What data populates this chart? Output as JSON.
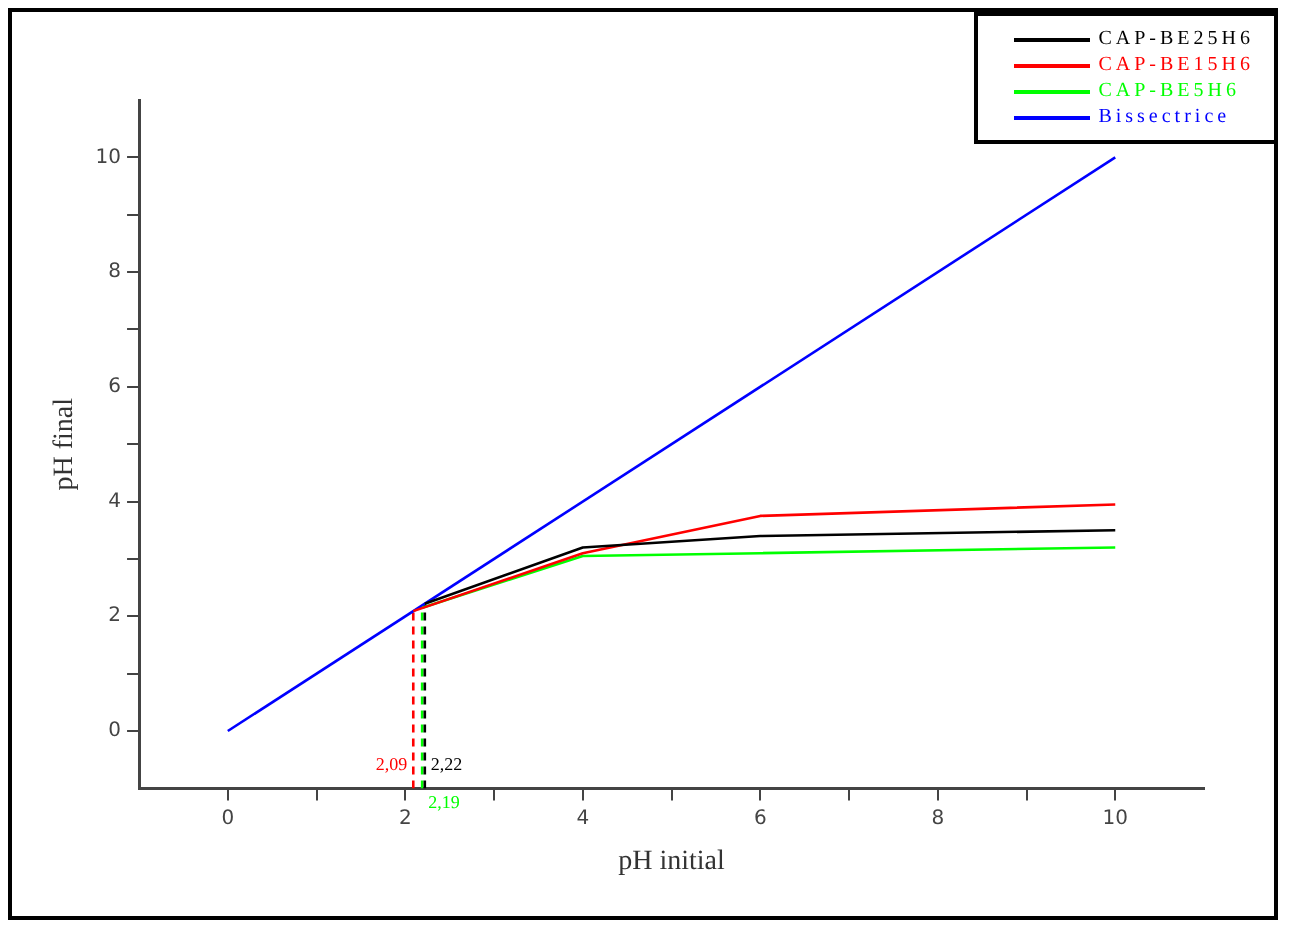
{
  "chart_data": {
    "type": "line",
    "xlabel": "pH initial",
    "ylabel": "pH final",
    "xlim": [
      -1,
      11
    ],
    "ylim": [
      -1,
      11
    ],
    "xticks": [
      0,
      {
        "value": 1,
        "label": null
      },
      2,
      {
        "value": 3,
        "label": null
      },
      4,
      {
        "value": 5,
        "label": null
      },
      6,
      {
        "value": 7,
        "label": null
      },
      8,
      {
        "value": 9,
        "label": null
      },
      10
    ],
    "yticks": [
      0,
      {
        "value": 1,
        "label": null
      },
      2,
      {
        "value": 3,
        "label": null
      },
      4,
      {
        "value": 5,
        "label": null
      },
      6,
      {
        "value": 7,
        "label": null
      },
      8,
      {
        "value": 9,
        "label": null
      },
      10
    ],
    "grid": false,
    "legend": "top right",
    "marker": "none",
    "line_style": "solid",
    "series": [
      {
        "name": "CAP-BE25H6",
        "color": "#000000",
        "x": [
          2.22,
          4,
          6,
          10
        ],
        "values": [
          2.22,
          3.2,
          3.4,
          3.5
        ]
      },
      {
        "name": "CAP-BE15H6",
        "color": "#ff0000",
        "x": [
          2.09,
          4,
          6,
          10
        ],
        "values": [
          2.09,
          3.1,
          3.75,
          3.95
        ]
      },
      {
        "name": "CAP-BE5H6",
        "color": "#00ff00",
        "x": [
          2.19,
          4,
          6,
          10
        ],
        "values": [
          2.15,
          3.05,
          3.1,
          3.2
        ]
      },
      {
        "name": "Bissectrice",
        "color": "#0000ff",
        "x": [
          0,
          10
        ],
        "values": [
          0,
          10
        ]
      },
      {
        "color": "#ff0000",
        "line_style": "dashed",
        "x": [
          2.09,
          2.09
        ],
        "values": [
          -1,
          2.09
        ]
      },
      {
        "color": "#000000",
        "line_style": "dashed",
        "x": [
          2.22,
          2.22
        ],
        "values": [
          -1,
          2.22
        ]
      },
      {
        "color": "#00ff00",
        "line_style": "dashed",
        "x": [
          2.19,
          2.19
        ],
        "values": [
          -1,
          2.15
        ]
      }
    ],
    "annotations": [
      {
        "text": "2,09",
        "x": 2.09,
        "y": -0.6
      },
      {
        "text": "2,22",
        "x": 2.22,
        "y": -0.6
      },
      {
        "text": "2,19",
        "x": 2.19,
        "y": -1
      }
    ]
  }
}
